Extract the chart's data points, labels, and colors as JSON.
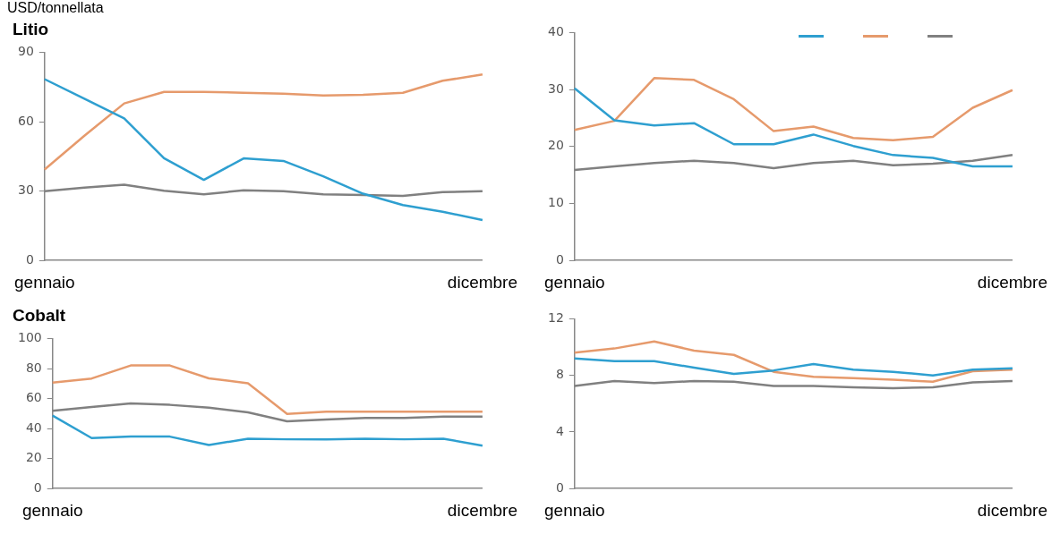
{
  "chart_data": [
    {
      "type": "line",
      "title": "Litio",
      "subtitle": "USD/tonnellata",
      "categories": [
        "gennaio",
        null,
        null,
        null,
        null,
        null,
        null,
        null,
        null,
        null,
        null,
        "dicembre"
      ],
      "ylim": [
        0,
        90
      ],
      "yticks": [
        0,
        30,
        60,
        90
      ],
      "series": [
        {
          "color": "#2e9fd0",
          "values": [
            78.5,
            70,
            61.5,
            44.3,
            34.9,
            44.2,
            43.1,
            36.4,
            28.9,
            24,
            21.1,
            17.5
          ]
        },
        {
          "color": "#e69a6c",
          "values": [
            39.4,
            54,
            68,
            73,
            73,
            72.6,
            72.2,
            71.4,
            71.7,
            72.6,
            77.8,
            80.5
          ]
        },
        {
          "color": "#808080",
          "values": [
            30,
            31.5,
            32.8,
            30.2,
            28.6,
            30.4,
            30,
            28.6,
            28.3,
            28,
            29.6,
            30
          ]
        }
      ]
    },
    {
      "type": "line",
      "categories": [
        "gennaio",
        null,
        null,
        null,
        null,
        null,
        null,
        null,
        null,
        null,
        null,
        "dicembre"
      ],
      "ylim": [
        0,
        40
      ],
      "yticks": [
        0,
        10,
        20,
        30,
        40
      ],
      "series": [
        {
          "color": "#2e9fd0",
          "values": [
            30.2,
            24.6,
            23.7,
            24.1,
            20.4,
            20.4,
            22.1,
            20.1,
            18.5,
            18,
            16.5,
            16.5
          ]
        },
        {
          "color": "#e69a6c",
          "values": [
            22.9,
            24.5,
            32,
            31.7,
            28.3,
            22.7,
            23.5,
            21.5,
            21.1,
            21.7,
            26.8,
            29.9
          ]
        },
        {
          "color": "#808080",
          "values": [
            15.9,
            16.5,
            17.1,
            17.5,
            17.1,
            16.2,
            17.1,
            17.5,
            16.7,
            17,
            17.5,
            18.5
          ]
        }
      ]
    },
    {
      "type": "line",
      "title": "Cobalt",
      "categories": [
        "gennaio",
        null,
        null,
        null,
        null,
        null,
        null,
        null,
        null,
        null,
        null,
        "dicembre"
      ],
      "ylim": [
        0,
        100
      ],
      "yticks": [
        0,
        20,
        40,
        60,
        80,
        100
      ],
      "series": [
        {
          "color": "#2e9fd0",
          "values": [
            48.7,
            33.7,
            34.7,
            34.7,
            29.1,
            33.3,
            32.9,
            32.9,
            33.3,
            32.9,
            33.3,
            28.7
          ]
        },
        {
          "color": "#e69a6c",
          "values": [
            70.7,
            73.5,
            82.2,
            82.2,
            73.6,
            70.3,
            49.9,
            51.3,
            51.3,
            51.3,
            51.3,
            51.3
          ]
        },
        {
          "color": "#808080",
          "values": [
            51.9,
            54.5,
            56.9,
            55.9,
            54.1,
            50.9,
            44.9,
            46.1,
            47.1,
            47.1,
            48.1,
            48.1
          ]
        }
      ]
    },
    {
      "type": "line",
      "categories": [
        "gennaio",
        null,
        null,
        null,
        null,
        null,
        null,
        null,
        null,
        null,
        null,
        "dicembre"
      ],
      "ylim": [
        0,
        12
      ],
      "yticks": [
        0,
        4,
        8,
        12
      ],
      "series": [
        {
          "color": "#2e9fd0",
          "values": [
            9.2,
            9,
            9,
            8.55,
            8.1,
            8.35,
            8.8,
            8.4,
            8.25,
            8,
            8.4,
            8.5
          ]
        },
        {
          "color": "#e69a6c",
          "values": [
            9.6,
            9.9,
            10.4,
            9.75,
            9.45,
            8.25,
            7.9,
            7.8,
            7.7,
            7.55,
            8.3,
            8.4
          ]
        },
        {
          "color": "#808080",
          "values": [
            7.25,
            7.6,
            7.45,
            7.6,
            7.55,
            7.25,
            7.25,
            7.15,
            7.1,
            7.15,
            7.5,
            7.6
          ]
        }
      ]
    }
  ]
}
